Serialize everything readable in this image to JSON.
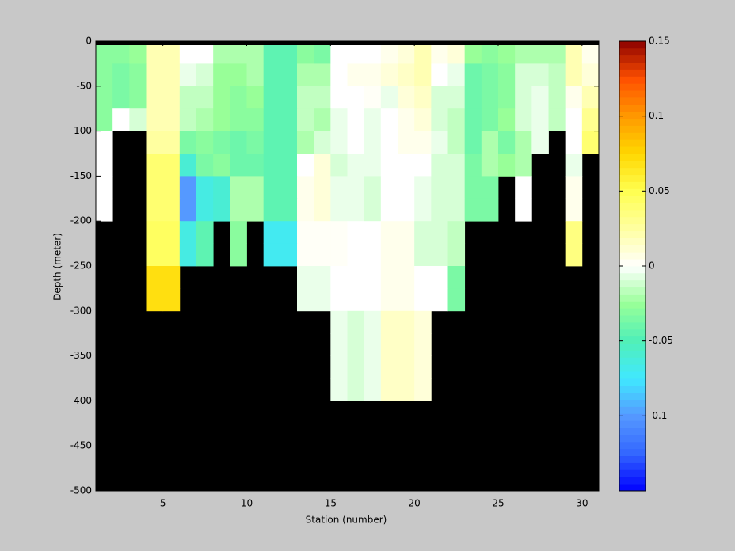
{
  "chart_data": {
    "type": "heatmap",
    "xlabel": "Station (number)",
    "ylabel": "Depth (meter)",
    "x": [
      1,
      2,
      3,
      4,
      5,
      6,
      7,
      8,
      9,
      10,
      11,
      12,
      13,
      14,
      15,
      16,
      17,
      18,
      19,
      20,
      21,
      22,
      23,
      24,
      25,
      26,
      27,
      28,
      29,
      30
    ],
    "y": [
      0,
      -25,
      -50,
      -75,
      -100,
      -125,
      -150,
      -175,
      -200,
      -225,
      -250,
      -275,
      -300,
      -325,
      -350,
      -375,
      -400,
      -425,
      -450,
      -475
    ],
    "z": [
      [
        -0.03,
        -0.03,
        -0.025,
        0.02,
        0.02,
        0,
        0,
        -0.02,
        -0.02,
        -0.02,
        -0.045,
        -0.045,
        -0.03,
        -0.035,
        0,
        0,
        0,
        0.005,
        0.01,
        0.02,
        0.005,
        0.01,
        -0.025,
        -0.03,
        -0.025,
        -0.02,
        -0.02,
        -0.02,
        0.02,
        0.005
      ],
      [
        -0.03,
        -0.035,
        -0.03,
        0.02,
        0.02,
        -0.005,
        -0.01,
        -0.025,
        -0.025,
        -0.02,
        -0.045,
        -0.045,
        -0.02,
        -0.02,
        0,
        0.005,
        0.005,
        0.01,
        0.015,
        0.02,
        0,
        -0.005,
        -0.04,
        -0.035,
        -0.03,
        -0.01,
        -0.01,
        -0.015,
        0.02,
        0.01
      ],
      [
        -0.03,
        -0.035,
        -0.03,
        0.02,
        0.02,
        -0.015,
        -0.015,
        -0.025,
        -0.03,
        -0.025,
        -0.045,
        -0.045,
        -0.015,
        -0.015,
        0,
        0,
        0.002,
        -0.005,
        0.01,
        0.015,
        -0.01,
        -0.01,
        -0.04,
        -0.035,
        -0.03,
        -0.01,
        -0.005,
        -0.015,
        0.005,
        0.02
      ],
      [
        -0.03,
        0,
        -0.01,
        0.02,
        0.02,
        -0.015,
        -0.02,
        -0.025,
        -0.03,
        -0.03,
        -0.045,
        -0.045,
        -0.015,
        -0.02,
        -0.005,
        0,
        -0.005,
        0,
        0.005,
        0.01,
        -0.01,
        -0.015,
        -0.04,
        -0.035,
        -0.025,
        -0.01,
        -0.005,
        -0.015,
        0,
        0.03
      ],
      [
        0,
        null,
        null,
        0.025,
        0.025,
        -0.035,
        -0.03,
        -0.035,
        -0.04,
        -0.035,
        -0.045,
        -0.045,
        -0.02,
        -0.01,
        -0.005,
        0,
        -0.005,
        0,
        0.005,
        0.005,
        -0.005,
        -0.015,
        -0.04,
        -0.02,
        -0.035,
        -0.02,
        -0.005,
        null,
        0,
        0.04
      ],
      [
        0,
        null,
        null,
        0.04,
        0.04,
        -0.06,
        -0.035,
        -0.03,
        -0.04,
        -0.04,
        -0.045,
        -0.045,
        0,
        0.01,
        -0.01,
        -0.005,
        -0.005,
        0,
        0,
        0,
        -0.01,
        -0.01,
        -0.035,
        -0.02,
        -0.025,
        -0.02,
        null,
        null,
        -0.005,
        null
      ],
      [
        0,
        null,
        null,
        0.04,
        0.04,
        -0.1,
        -0.065,
        -0.06,
        -0.02,
        -0.02,
        -0.045,
        -0.045,
        0.005,
        0.01,
        -0.005,
        -0.005,
        -0.01,
        0,
        0,
        -0.005,
        -0.01,
        -0.01,
        -0.035,
        -0.035,
        null,
        0,
        null,
        null,
        0.005,
        null
      ],
      [
        0,
        null,
        null,
        0.04,
        0.04,
        -0.1,
        -0.065,
        -0.06,
        -0.02,
        -0.02,
        -0.045,
        -0.045,
        0.005,
        0.01,
        -0.005,
        -0.005,
        -0.01,
        0,
        0,
        -0.005,
        -0.01,
        -0.01,
        -0.035,
        -0.035,
        null,
        0,
        null,
        null,
        0.005,
        null
      ],
      [
        null,
        null,
        null,
        0.045,
        0.045,
        -0.065,
        -0.045,
        null,
        -0.03,
        null,
        -0.07,
        -0.07,
        0.002,
        0.002,
        0.002,
        0,
        0,
        0.005,
        0.005,
        -0.01,
        -0.01,
        -0.015,
        null,
        null,
        null,
        null,
        null,
        null,
        0.035,
        null
      ],
      [
        null,
        null,
        null,
        0.045,
        0.045,
        -0.065,
        -0.045,
        null,
        -0.03,
        null,
        -0.07,
        -0.07,
        0.002,
        0.002,
        0.002,
        0,
        0,
        0.005,
        0.005,
        -0.01,
        -0.01,
        -0.015,
        null,
        null,
        null,
        null,
        null,
        null,
        0.035,
        null
      ],
      [
        null,
        null,
        null,
        0.07,
        0.07,
        null,
        null,
        null,
        null,
        null,
        null,
        null,
        -0.005,
        -0.005,
        0,
        0,
        0,
        0.005,
        0.005,
        0,
        0,
        -0.035,
        null,
        null,
        null,
        null,
        null,
        null,
        null,
        null
      ],
      [
        null,
        null,
        null,
        0.07,
        0.07,
        null,
        null,
        null,
        null,
        null,
        null,
        null,
        -0.005,
        -0.005,
        0,
        0,
        0,
        0.005,
        0.005,
        0,
        0,
        -0.035,
        null,
        null,
        null,
        null,
        null,
        null,
        null,
        null
      ],
      [
        null,
        null,
        null,
        null,
        null,
        null,
        null,
        null,
        null,
        null,
        null,
        null,
        null,
        null,
        -0.005,
        -0.01,
        -0.005,
        0.015,
        0.015,
        0.01,
        null,
        null,
        null,
        null,
        null,
        null,
        null,
        null,
        null,
        null
      ],
      [
        null,
        null,
        null,
        null,
        null,
        null,
        null,
        null,
        null,
        null,
        null,
        null,
        null,
        null,
        -0.005,
        -0.01,
        -0.005,
        0.015,
        0.015,
        0.01,
        null,
        null,
        null,
        null,
        null,
        null,
        null,
        null,
        null,
        null
      ],
      [
        null,
        null,
        null,
        null,
        null,
        null,
        null,
        null,
        null,
        null,
        null,
        null,
        null,
        null,
        -0.005,
        -0.01,
        -0.005,
        0.015,
        0.015,
        0.01,
        null,
        null,
        null,
        null,
        null,
        null,
        null,
        null,
        null,
        null
      ],
      [
        null,
        null,
        null,
        null,
        null,
        null,
        null,
        null,
        null,
        null,
        null,
        null,
        null,
        null,
        -0.005,
        -0.01,
        -0.005,
        0.015,
        0.015,
        0.01,
        null,
        null,
        null,
        null,
        null,
        null,
        null,
        null,
        null,
        null
      ],
      [
        null,
        null,
        null,
        null,
        null,
        null,
        null,
        null,
        null,
        null,
        null,
        null,
        null,
        null,
        null,
        null,
        null,
        null,
        null,
        null,
        null,
        null,
        null,
        null,
        null,
        null,
        null,
        null,
        null,
        null
      ],
      [
        null,
        null,
        null,
        null,
        null,
        null,
        null,
        null,
        null,
        null,
        null,
        null,
        null,
        null,
        null,
        null,
        null,
        null,
        null,
        null,
        null,
        null,
        null,
        null,
        null,
        null,
        null,
        null,
        null,
        null
      ],
      [
        null,
        null,
        null,
        null,
        null,
        null,
        null,
        null,
        null,
        null,
        null,
        null,
        null,
        null,
        null,
        null,
        null,
        null,
        null,
        null,
        null,
        null,
        null,
        null,
        null,
        null,
        null,
        null,
        null,
        null
      ],
      [
        null,
        null,
        null,
        null,
        null,
        null,
        null,
        null,
        null,
        null,
        null,
        null,
        null,
        null,
        null,
        null,
        null,
        null,
        null,
        null,
        null,
        null,
        null,
        null,
        null,
        null,
        null,
        null,
        null,
        null
      ]
    ],
    "xlim": [
      1,
      31
    ],
    "xticks": [
      5,
      10,
      15,
      20,
      25,
      30
    ],
    "ylim": [
      -500,
      0
    ],
    "yticks": [
      0,
      -50,
      -100,
      -150,
      -200,
      -250,
      -300,
      -350,
      -400,
      -450,
      -500
    ],
    "clim": [
      -0.15,
      0.15
    ],
    "cticks": [
      0.15,
      0.1,
      0.05,
      0,
      -0.05,
      -0.1
    ],
    "colormap": [
      "#0000ff",
      "#3366ff",
      "#5599ff",
      "#40e8ff",
      "#50f0b8",
      "#98ff98",
      "#ffffff",
      "#ffffa0",
      "#ffff50",
      "#ffd700",
      "#ff9900",
      "#ff5000",
      "#8b0000"
    ],
    "missing_color": "#000000"
  }
}
